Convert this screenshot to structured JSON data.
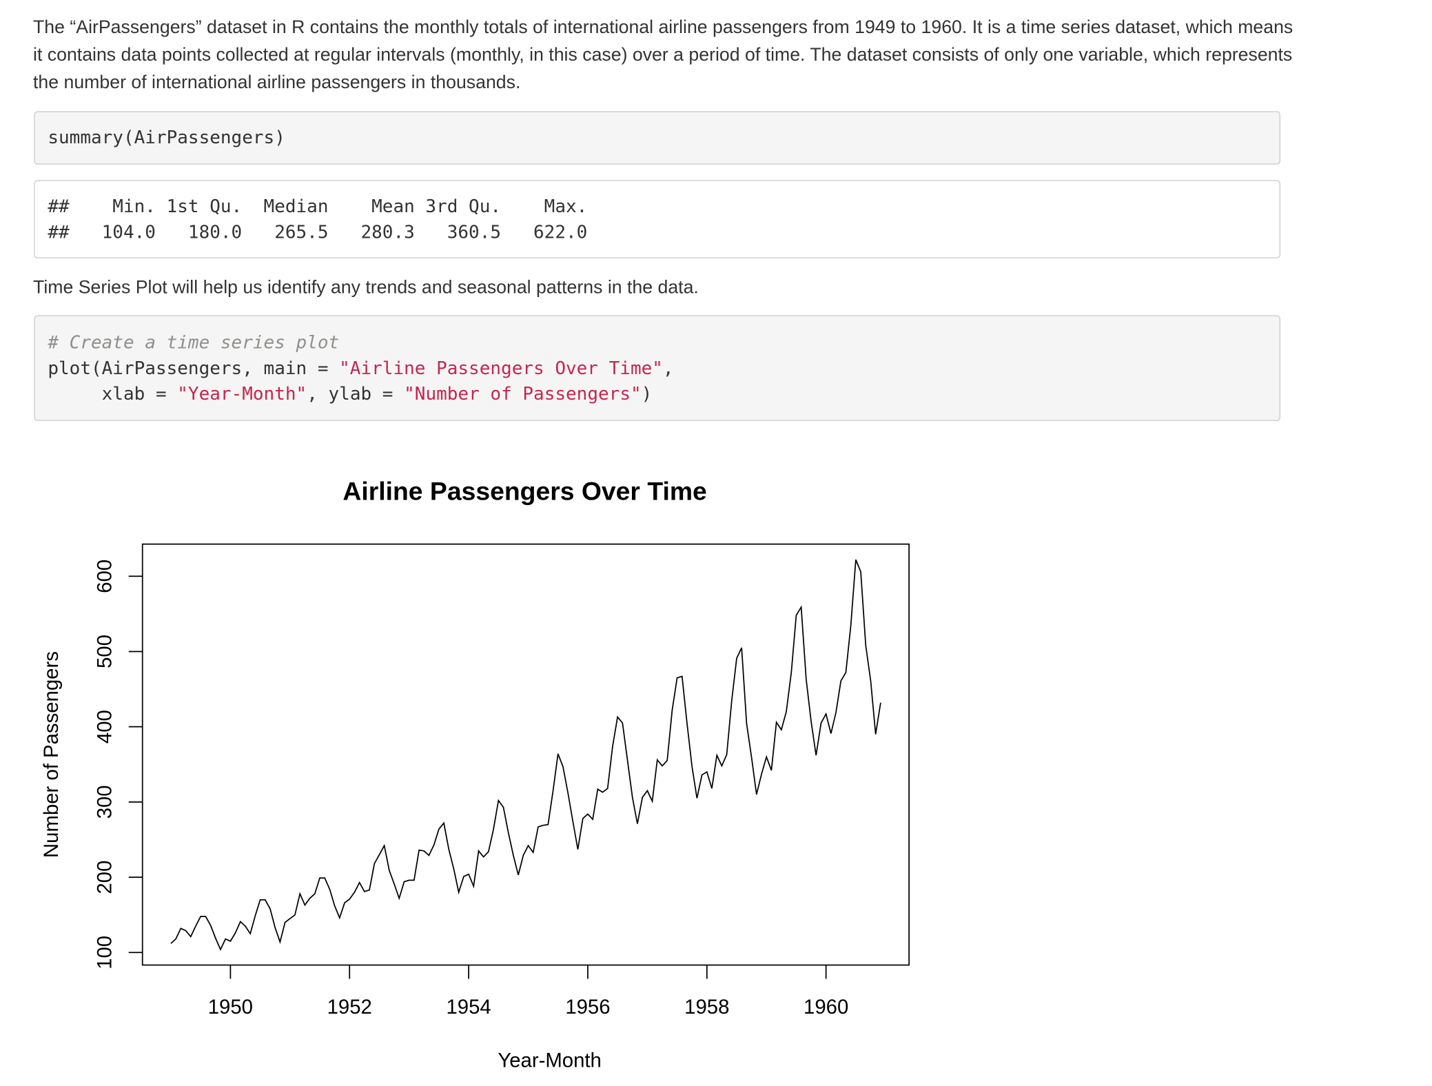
{
  "intro": "The “AirPassengers” dataset in R contains the monthly totals of international airline passengers from 1949 to 1960. It is a time series dataset, which means it contains data points collected at regular intervals (monthly, in this case) over a period of time. The dataset consists of only one variable, which represents the number of international airline passengers in thousands.",
  "code1": "summary(AirPassengers)",
  "output": [
    "##    Min. 1st Qu.  Median    Mean 3rd Qu.    Max. ",
    "##   104.0   180.0   265.5   280.3   360.5   622.0 "
  ],
  "paragraph2": "Time Series Plot will help us identify any trends and seasonal patterns in the data.",
  "code2": {
    "comment": "# Create a time series plot",
    "lines": [
      [
        "plot(AirPassengers, main = ",
        "\"Airline Passengers Over Time\"",
        ","
      ],
      [
        "     xlab = ",
        "\"Year-Month\"",
        ", ylab = ",
        "\"Number of Passengers\"",
        ")"
      ]
    ]
  },
  "chart_data": {
    "type": "line",
    "title": "Airline Passengers Over Time",
    "x_label": "Year-Month",
    "y_label": "Number of Passengers",
    "color": "#000000",
    "x": [
      1949,
      1949.083,
      1949.167,
      1949.25,
      1949.333,
      1949.417,
      1949.5,
      1949.583,
      1949.667,
      1949.75,
      1949.833,
      1949.917,
      1950,
      1950.083,
      1950.167,
      1950.25,
      1950.333,
      1950.417,
      1950.5,
      1950.583,
      1950.667,
      1950.75,
      1950.833,
      1950.917,
      1951,
      1951.083,
      1951.167,
      1951.25,
      1951.333,
      1951.417,
      1951.5,
      1951.583,
      1951.667,
      1951.75,
      1951.833,
      1951.917,
      1952,
      1952.083,
      1952.167,
      1952.25,
      1952.333,
      1952.417,
      1952.5,
      1952.583,
      1952.667,
      1952.75,
      1952.833,
      1952.917,
      1953,
      1953.083,
      1953.167,
      1953.25,
      1953.333,
      1953.417,
      1953.5,
      1953.583,
      1953.667,
      1953.75,
      1953.833,
      1953.917,
      1954,
      1954.083,
      1954.167,
      1954.25,
      1954.333,
      1954.417,
      1954.5,
      1954.583,
      1954.667,
      1954.75,
      1954.833,
      1954.917,
      1955,
      1955.083,
      1955.167,
      1955.25,
      1955.333,
      1955.417,
      1955.5,
      1955.583,
      1955.667,
      1955.75,
      1955.833,
      1955.917,
      1956,
      1956.083,
      1956.167,
      1956.25,
      1956.333,
      1956.417,
      1956.5,
      1956.583,
      1956.667,
      1956.75,
      1956.833,
      1956.917,
      1957,
      1957.083,
      1957.167,
      1957.25,
      1957.333,
      1957.417,
      1957.5,
      1957.583,
      1957.667,
      1957.75,
      1957.833,
      1957.917,
      1958,
      1958.083,
      1958.167,
      1958.25,
      1958.333,
      1958.417,
      1958.5,
      1958.583,
      1958.667,
      1958.75,
      1958.833,
      1958.917,
      1959,
      1959.083,
      1959.167,
      1959.25,
      1959.333,
      1959.417,
      1959.5,
      1959.583,
      1959.667,
      1959.75,
      1959.833,
      1959.917,
      1960,
      1960.083,
      1960.167,
      1960.25,
      1960.333,
      1960.417,
      1960.5,
      1960.583,
      1960.667,
      1960.75,
      1960.833,
      1960.917
    ],
    "values": [
      112,
      118,
      132,
      129,
      121,
      135,
      148,
      148,
      136,
      119,
      104,
      118,
      115,
      126,
      141,
      135,
      125,
      149,
      170,
      170,
      158,
      133,
      114,
      140,
      145,
      150,
      178,
      163,
      172,
      178,
      199,
      199,
      184,
      162,
      146,
      166,
      171,
      180,
      193,
      181,
      183,
      218,
      230,
      242,
      209,
      191,
      172,
      194,
      196,
      196,
      236,
      235,
      229,
      243,
      264,
      272,
      237,
      211,
      180,
      201,
      204,
      188,
      235,
      227,
      234,
      264,
      302,
      293,
      259,
      229,
      203,
      229,
      242,
      233,
      267,
      269,
      270,
      315,
      364,
      347,
      312,
      274,
      237,
      278,
      284,
      277,
      317,
      313,
      318,
      374,
      413,
      405,
      355,
      306,
      271,
      306,
      315,
      301,
      356,
      348,
      355,
      422,
      465,
      467,
      404,
      347,
      305,
      336,
      340,
      318,
      362,
      348,
      363,
      435,
      491,
      505,
      404,
      359,
      310,
      337,
      360,
      342,
      406,
      396,
      420,
      472,
      548,
      559,
      463,
      407,
      362,
      405,
      417,
      391,
      419,
      461,
      472,
      535,
      622,
      606,
      508,
      461,
      390,
      432
    ],
    "xlim": [
      1948.523,
      1961.394
    ],
    "ylim": [
      83.28,
      642.72
    ],
    "xticks": [
      1950,
      1952,
      1954,
      1956,
      1958,
      1960
    ],
    "yticks": [
      100,
      200,
      300,
      400,
      500,
      600
    ]
  }
}
